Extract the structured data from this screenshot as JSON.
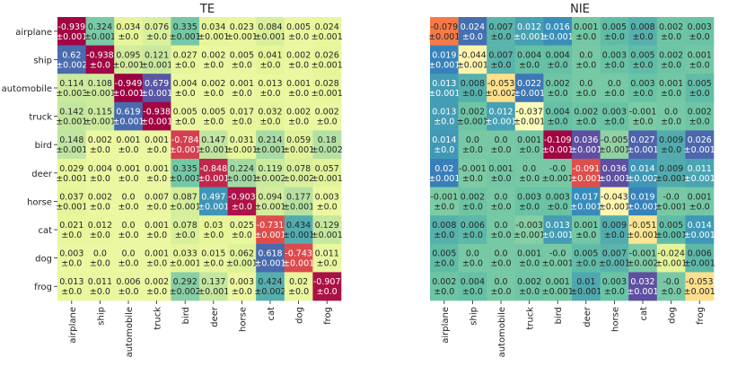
{
  "chart_data": [
    {
      "type": "heatmap",
      "title": "TE",
      "categories": [
        "airplane",
        "ship",
        "automobile",
        "truck",
        "bird",
        "deer",
        "horse",
        "cat",
        "dog",
        "frog"
      ],
      "values": [
        [
          "-0.939",
          "0.324",
          "0.034",
          "0.076",
          "0.335",
          "0.034",
          "0.023",
          "0.084",
          "0.005",
          "0.024"
        ],
        [
          "0.62",
          "-0.938",
          "0.095",
          "0.121",
          "0.027",
          "0.002",
          "0.005",
          "0.041",
          "0.002",
          "0.026"
        ],
        [
          "0.114",
          "0.108",
          "-0.949",
          "0.679",
          "0.004",
          "0.002",
          "0.001",
          "0.013",
          "0.001",
          "0.028"
        ],
        [
          "0.142",
          "0.115",
          "0.619",
          "-0.938",
          "0.005",
          "0.005",
          "0.017",
          "0.032",
          "0.002",
          "0.002"
        ],
        [
          "0.148",
          "0.002",
          "0.001",
          "0.001",
          "-0.784",
          "0.147",
          "0.031",
          "0.214",
          "0.059",
          "0.18"
        ],
        [
          "0.029",
          "0.004",
          "0.001",
          "0.001",
          "0.335",
          "-0.848",
          "0.224",
          "0.119",
          "0.078",
          "0.057"
        ],
        [
          "0.037",
          "0.002",
          "0.0",
          "0.007",
          "0.087",
          "0.497",
          "-0.903",
          "0.094",
          "0.177",
          "0.003"
        ],
        [
          "0.021",
          "0.012",
          "0.0",
          "0.001",
          "0.078",
          "0.03",
          "0.025",
          "-0.731",
          "0.434",
          "0.129"
        ],
        [
          "0.003",
          "0.0",
          "0.0",
          "0.001",
          "0.033",
          "0.015",
          "0.062",
          "0.618",
          "-0.743",
          "0.011"
        ],
        [
          "0.013",
          "0.011",
          "0.006",
          "0.002",
          "0.292",
          "0.137",
          "0.003",
          "0.424",
          "0.02",
          "-0.907"
        ]
      ],
      "errors": [
        [
          "±0.001",
          "±0.001",
          "±0.0",
          "±0.0",
          "±0.001",
          "±0.001",
          "±0.001",
          "±0.001",
          "±0.0",
          "±0.001"
        ],
        [
          "±0.002",
          "±0.0",
          "±0.001",
          "±0.001",
          "±0.0",
          "±0.0",
          "±0.0",
          "±0.0",
          "±0.0",
          "±0.001"
        ],
        [
          "±0.003",
          "±0.001",
          "±0.001",
          "±0.001",
          "±0.0",
          "±0.0",
          "±0.0",
          "±0.0",
          "±0.0",
          "±0.001"
        ],
        [
          "±0.001",
          "±0.001",
          "±0.001",
          "±0.001",
          "±0.0",
          "±0.0",
          "±0.0",
          "±0.0",
          "±0.0",
          "±0.0"
        ],
        [
          "±0.001",
          "±0.0",
          "±0.0",
          "±0.0",
          "±0.001",
          "±0.001",
          "±0.001",
          "±0.001",
          "±0.001",
          "±0.002"
        ],
        [
          "±0.001",
          "±0.0",
          "±0.0",
          "±0.0",
          "±0.001",
          "±0.001",
          "±0.001",
          "±0.002",
          "±0.002",
          "±0.001"
        ],
        [
          "±0.001",
          "±0.0",
          "±0.0",
          "±0.0",
          "±0.001",
          "±0.001",
          "±0.0",
          "±0.001",
          "±0.001",
          "±0.0"
        ],
        [
          "±0.0",
          "±0.0",
          "±0.0",
          "±0.0",
          "±0.0",
          "±0.0",
          "±0.0",
          "±0.001",
          "±0.001",
          "±0.001"
        ],
        [
          "±0.0",
          "±0.0",
          "±0.0",
          "±0.0",
          "±0.001",
          "±0.0",
          "±0.001",
          "±0.001",
          "±0.001",
          "±0.0"
        ],
        [
          "±0.0",
          "±0.0",
          "±0.0",
          "±0.0",
          "±0.002",
          "±0.001",
          "±0.0",
          "±0.002",
          "±0.0",
          "±0.0"
        ]
      ]
    },
    {
      "type": "heatmap",
      "title": "NIE",
      "categories": [
        "airplane",
        "ship",
        "automobile",
        "truck",
        "bird",
        "deer",
        "horse",
        "cat",
        "dog",
        "frog"
      ],
      "values": [
        [
          "-0.079",
          "0.024",
          "0.007",
          "0.012",
          "0.016",
          "0.001",
          "0.005",
          "0.008",
          "0.002",
          "0.003"
        ],
        [
          "0.019",
          "-0.044",
          "0.007",
          "0.004",
          "0.004",
          "0.0",
          "0.003",
          "0.005",
          "0.002",
          "0.001"
        ],
        [
          "0.013",
          "0.008",
          "-0.053",
          "0.022",
          "0.002",
          "0.0",
          "0.0",
          "0.003",
          "0.001",
          "0.005"
        ],
        [
          "0.013",
          "0.002",
          "0.012",
          "-0.037",
          "0.004",
          "0.002",
          "0.003",
          "-0.001",
          "0.0",
          "0.002"
        ],
        [
          "0.014",
          "0.0",
          "0.0",
          "0.001",
          "-0.109",
          "0.036",
          "-0.005",
          "0.027",
          "0.009",
          "0.026"
        ],
        [
          "0.02",
          "-0.001",
          "0.001",
          "0.0",
          "-0.0",
          "-0.091",
          "0.036",
          "0.014",
          "0.009",
          "0.011"
        ],
        [
          "-0.001",
          "0.002",
          "0.0",
          "0.003",
          "0.003",
          "0.017",
          "-0.043",
          "0.019",
          "-0.0",
          "0.001"
        ],
        [
          "0.008",
          "0.006",
          "0.0",
          "-0.003",
          "0.013",
          "0.001",
          "0.009",
          "-0.051",
          "0.005",
          "0.014"
        ],
        [
          "0.005",
          "0.0",
          "0.0",
          "0.001",
          "-0.0",
          "0.005",
          "0.007",
          "-0.001",
          "-0.024",
          "0.006"
        ],
        [
          "0.002",
          "0.004",
          "0.0",
          "0.002",
          "0.001",
          "0.01",
          "0.003",
          "0.032",
          "-0.0",
          "-0.053"
        ]
      ],
      "errors": [
        [
          "±0.001",
          "±0.0",
          "±0.0",
          "±0.001",
          "±0.001",
          "±0.0",
          "±0.0",
          "±0.0",
          "±0.0",
          "±0.0"
        ],
        [
          "±0.001",
          "±0.001",
          "±0.0",
          "±0.0",
          "±0.0",
          "±0.0",
          "±0.0",
          "±0.0",
          "±0.0",
          "±0.0"
        ],
        [
          "±0.001",
          "±0.0",
          "±0.002",
          "±0.001",
          "±0.0",
          "±0.0",
          "±0.0",
          "±0.0",
          "±0.0",
          "±0.0"
        ],
        [
          "±0.0",
          "±0.001",
          "±0.001",
          "±0.001",
          "±0.0",
          "±0.0",
          "±0.0",
          "±0.0",
          "±0.0",
          "±0.0"
        ],
        [
          "±0.0",
          "±0.0",
          "±0.0",
          "±0.0",
          "±0.001",
          "±0.001",
          "±0.001",
          "±0.001",
          "±0.0",
          "±0.001"
        ],
        [
          "±0.001",
          "±0.0",
          "±0.0",
          "±0.0",
          "±0.001",
          "±0.001",
          "±0.001",
          "±0.002",
          "±0.001",
          "±0.001"
        ],
        [
          "±0.0",
          "±0.0",
          "±0.0",
          "±0.0",
          "±0.0",
          "±0.001",
          "±0.001",
          "±0.001",
          "±0.001",
          "±0.0"
        ],
        [
          "±0.0",
          "±0.0",
          "±0.0",
          "±0.001",
          "±0.001",
          "±0.0",
          "±0.0",
          "±0.001",
          "±0.001",
          "±0.001"
        ],
        [
          "±0.0",
          "±0.0",
          "±0.0",
          "±0.0",
          "±0.001",
          "±0.0",
          "±0.001",
          "±0.002",
          "±0.001",
          "±0.001"
        ],
        [
          "±0.0",
          "±0.0",
          "±0.0",
          "±0.0",
          "±0.001",
          "±0.001",
          "±0.0",
          "±0.001",
          "±0.0",
          "±0.001"
        ]
      ]
    }
  ]
}
